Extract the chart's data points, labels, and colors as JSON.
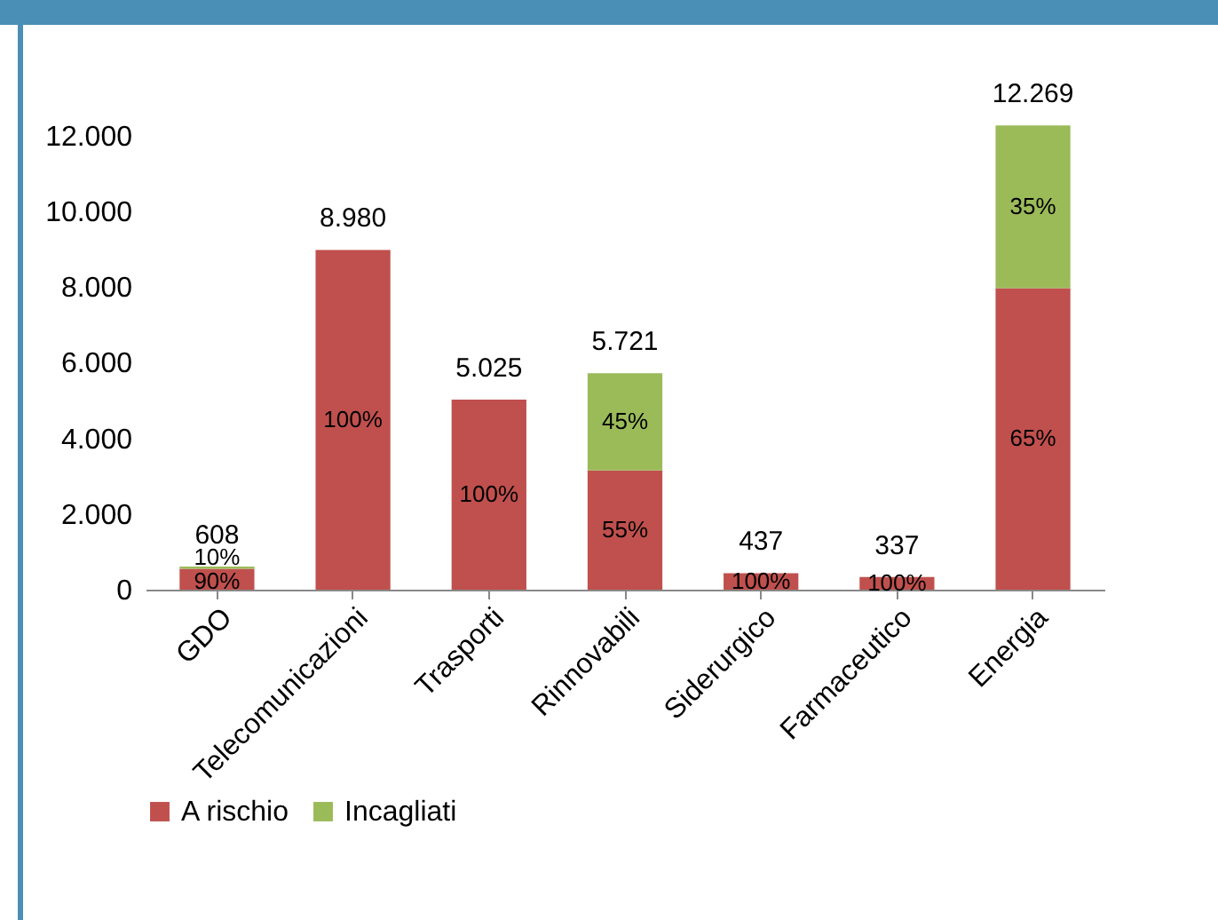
{
  "chart_data": {
    "type": "bar",
    "stacked": true,
    "categories": [
      "GDO",
      "Telecomunicazioni",
      "Trasporti",
      "Rinnovabili",
      "Siderurgico",
      "Farmaceutico",
      "Energia"
    ],
    "series": [
      {
        "name": "A rischio",
        "color": "#c0504d",
        "values": [
          550,
          8980,
          5025,
          3150,
          437,
          337,
          7970
        ]
      },
      {
        "name": "Incagliati",
        "color": "#9bbb59",
        "values": [
          58,
          0,
          0,
          2570,
          0,
          0,
          4300
        ]
      }
    ],
    "totals": [
      "608",
      "8.980",
      "5.025",
      "5.721",
      "437",
      "337",
      "12.269"
    ],
    "annotations": [
      {
        "text": "90%",
        "x": "GDO",
        "y": 200
      },
      {
        "text": "10%",
        "x": "GDO",
        "y": 850
      },
      {
        "text": "100%",
        "x": "Telecomunicazioni",
        "y": 4490
      },
      {
        "text": "100%",
        "x": "Trasporti",
        "y": 2510
      },
      {
        "text": "55%",
        "x": "Rinnovabili",
        "y": 1580
      },
      {
        "text": "45%",
        "x": "Rinnovabili",
        "y": 4440
      },
      {
        "text": "100%",
        "x": "Siderurgico",
        "y": 220
      },
      {
        "text": "100%",
        "x": "Farmaceutico",
        "y": 170
      },
      {
        "text": "65%",
        "x": "Energia",
        "y": 3990
      },
      {
        "text": "35%",
        "x": "Energia",
        "y": 10120
      }
    ],
    "ylim": [
      0,
      12300
    ],
    "yticks": [
      {
        "value": 0,
        "label": "0"
      },
      {
        "value": 2000,
        "label": "2.000"
      },
      {
        "value": 4000,
        "label": "4.000"
      },
      {
        "value": 6000,
        "label": "6.000"
      },
      {
        "value": 8000,
        "label": "8.000"
      },
      {
        "value": 10000,
        "label": "10.000"
      },
      {
        "value": 12000,
        "label": "12.000"
      }
    ],
    "grid": false,
    "legend": "bottom"
  }
}
